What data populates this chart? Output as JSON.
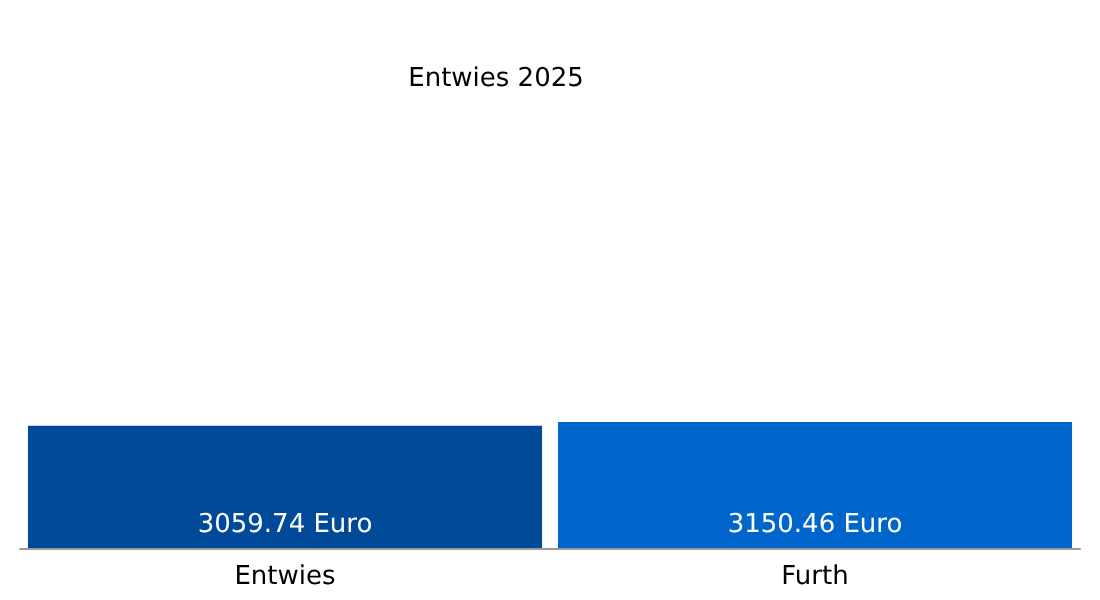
{
  "chart_data": {
    "type": "bar",
    "title": "Entwies 2025",
    "categories": [
      "Entwies",
      "Furth"
    ],
    "values": [
      3059.74,
      3150.46
    ],
    "colors": [
      "#004a99",
      "#0066cc"
    ],
    "value_labels": [
      "3059.74 Euro",
      "3150.46 Euro"
    ],
    "tick_labels": "x"
  }
}
